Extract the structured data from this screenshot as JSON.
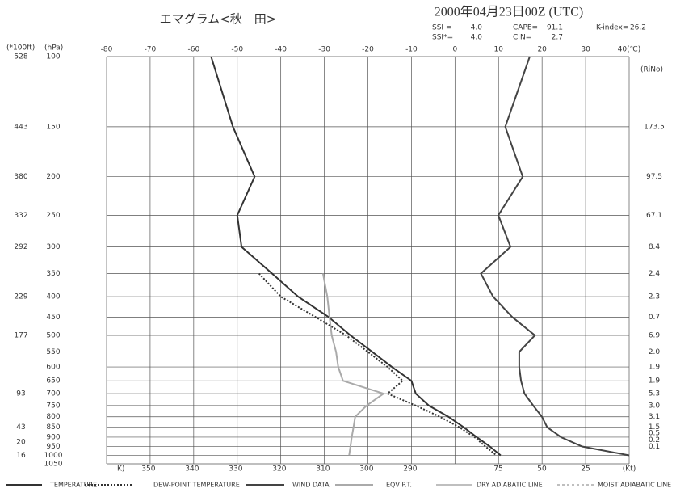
{
  "chart_data": {
    "type": "emagram",
    "title": "エマグラム<秋　田>",
    "subtitle": "2000年04月23日00Z (UTC)",
    "indices": {
      "labels": [
        "SSI =",
        "SSI*=",
        "CAPE=",
        "CIN=",
        "K-index="
      ],
      "texts": [
        "4.0",
        "4.0",
        "91.1",
        "2.7",
        "26.2"
      ]
    },
    "y_label": "(hPa)",
    "height_label": "(*100ft)",
    "rino_label": "(RiNo)",
    "x2_label": "K)",
    "log_y": true,
    "grid": true,
    "xlim": [
      -80,
      40
    ],
    "xticks": [
      -80,
      -70,
      -60,
      -50,
      -40,
      -30,
      -20,
      -10,
      0,
      10,
      20,
      30,
      {
        "value": 40,
        "label": "40(℃)"
      }
    ],
    "ylim": [
      100,
      1050
    ],
    "yticks": [
      100,
      150,
      200,
      250,
      300,
      350,
      400,
      450,
      500,
      550,
      600,
      650,
      700,
      750,
      800,
      850,
      900,
      950,
      1000,
      1050
    ],
    "x2lim": [
      359.6,
      239.8
    ],
    "x2ticks": [
      350,
      340,
      330,
      320,
      310,
      300,
      290
    ],
    "x3lim": [
      299.5,
      0
    ],
    "x3ticks": [
      75,
      50,
      25,
      {
        "value": 0,
        "label": "(Kt)"
      }
    ],
    "heights": {
      "pressure": [
        100,
        150,
        200,
        250,
        300,
        400,
        500,
        700,
        850,
        925,
        1000
      ],
      "labels": [
        528,
        443,
        380,
        332,
        292,
        229,
        177,
        93,
        43,
        20,
        16
      ]
    },
    "rino": {
      "pressure": [
        150,
        200,
        250,
        300,
        350,
        400,
        450,
        500,
        550,
        600,
        650,
        700,
        750,
        800,
        850,
        880,
        915,
        950
      ],
      "labels": [
        "173.5",
        "97.5",
        "67.1",
        "8.4",
        "2.4",
        "2.3",
        "0.7",
        "6.9",
        "2.0",
        "1.9",
        "1.9",
        "5.3",
        "3.0",
        "3.1",
        "1.5",
        "0.5",
        "0.2",
        "0.1"
      ]
    },
    "pressure": [
      100,
      150,
      200,
      250,
      300,
      350,
      400,
      450,
      500,
      550,
      600,
      650,
      700,
      750,
      800,
      850,
      900,
      950,
      1000
    ],
    "series": [
      {
        "name": "TEMPERATURE",
        "color": "#333333",
        "style": "solid",
        "axis": "x",
        "values": [
          -56,
          -51,
          -46,
          -50,
          -49,
          -42,
          -36,
          -29,
          -24,
          -19,
          -14.5,
          -10,
          -9,
          -6,
          -1.5,
          2,
          5,
          8,
          10.5
        ]
      },
      {
        "name": "DEW-POINT TEMPERATURE",
        "color": "#333333",
        "style": "dotted",
        "axis": "x",
        "values": [
          null,
          null,
          null,
          null,
          null,
          -45,
          -40,
          -32,
          -25,
          -20,
          -15.5,
          -12,
          -15.5,
          -9,
          -3.5,
          1,
          4.5,
          7,
          9.5
        ]
      },
      {
        "name": "WIND DATA",
        "color": "#444444",
        "style": "solid",
        "axis": "x3",
        "values": [
          57,
          71,
          61,
          75,
          68,
          85,
          78,
          67,
          54,
          63,
          63,
          62,
          60,
          55,
          50,
          47,
          39,
          27,
          0
        ]
      },
      {
        "name": "EQV P.T.",
        "color": "#aaaaaa",
        "style": "solid",
        "axis": "x2",
        "values": [
          null,
          null,
          null,
          null,
          null,
          310,
          309,
          308.5,
          308,
          307,
          306.5,
          305.4,
          296.1,
          300,
          302.6,
          303,
          303.4,
          303.7,
          304
        ]
      }
    ],
    "legend_extra": [
      {
        "name": "DRY ADIABATIC LINE",
        "style": "thin"
      },
      {
        "name": "MOIST ADIABATIC LINE",
        "style": "dashed"
      }
    ]
  }
}
